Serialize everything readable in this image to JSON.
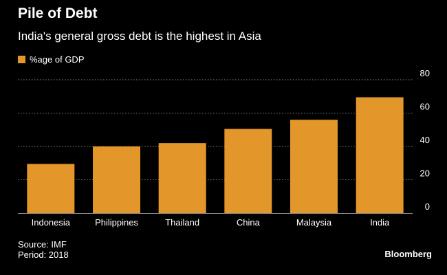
{
  "title": "Pile of Debt",
  "subtitle": "India's general gross debt is the highest in Asia",
  "source": "Source: IMF",
  "period": "Period: 2018",
  "brand": "Bloomberg",
  "colors": {
    "bar": "#e3962a",
    "background": "#000000",
    "grid": "#8a8a8a",
    "text": "#ffffff"
  },
  "chart_data": {
    "type": "bar",
    "categories": [
      "Indonesia",
      "Philippines",
      "Thailand",
      "China",
      "Malaysia",
      "India"
    ],
    "series": [
      {
        "name": "%age of GDP",
        "values": [
          29.5,
          40,
          42,
          50.5,
          56,
          69.5
        ]
      }
    ],
    "ylim": [
      0,
      80
    ],
    "yticks": [
      0,
      20,
      40,
      60,
      80
    ],
    "ytick_labels": [
      "0",
      "20",
      "40",
      "60",
      "80"
    ],
    "y_axis_position": "right",
    "grid": true,
    "legend": "top-left",
    "xlabel": "",
    "ylabel": ""
  }
}
